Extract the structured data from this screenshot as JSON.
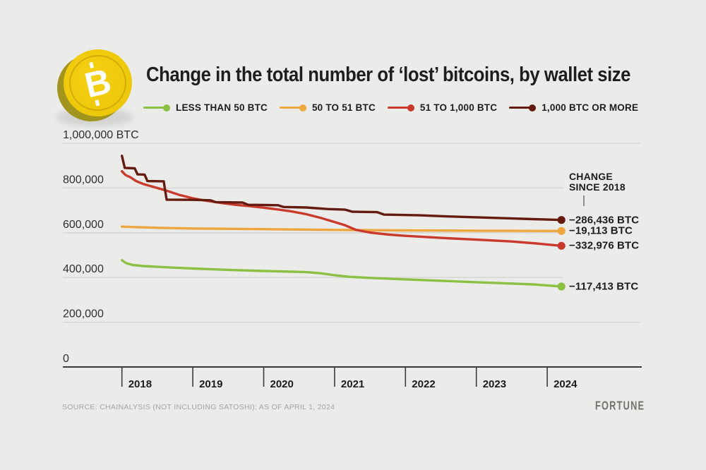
{
  "title": "Change in the total number of ‘lost’ bitcoins, by wallet size",
  "coin": {
    "symbol": "B",
    "name": "bitcoin"
  },
  "annotation": {
    "header_line1": "CHANGE",
    "header_line2": "SINCE 2018"
  },
  "source": "SOURCE: CHAINALYSIS (NOT INCLUDING SATOSHI); AS OF APRIL 1, 2024",
  "brand": "FORTUNE",
  "colors": {
    "background": "#ebece9",
    "grid": "#d3d3d0",
    "axis": "#3b3b39",
    "text_dark": "#1d1d1d",
    "text_muted": "#a3a3a0",
    "green": "#8cc043",
    "orange": "#eda73e",
    "red": "#c93a2c",
    "maroon": "#641b10",
    "coin_gold": "#eec80a",
    "coin_edge": "#a2951d"
  },
  "chart_data": {
    "type": "line",
    "title": "Change in the total number of ‘lost’ bitcoins, by wallet size",
    "unit": "BTC",
    "grid": true,
    "legend_position": "top",
    "x_axis": {
      "tick_labels": [
        "2018",
        "2019",
        "2020",
        "2021",
        "2022",
        "2023",
        "2024"
      ],
      "range_years": [
        2018,
        2024.25
      ]
    },
    "y_axis": {
      "range": [
        0,
        1000000
      ],
      "ticks": [
        {
          "label": "1,000,000 BTC",
          "value": 1000000
        },
        {
          "label": "800,000",
          "value": 800000
        },
        {
          "label": "600,000",
          "value": 600000
        },
        {
          "label": "400,000",
          "value": 400000
        },
        {
          "label": "200,000",
          "value": 200000
        },
        {
          "label": "0",
          "value": 0
        }
      ]
    },
    "series": [
      {
        "name": "LESS THAN 50 BTC",
        "color": "#8cc043",
        "change_since_2018": "−117,413 BTC",
        "end_value": 359700,
        "points": [
          [
            2018.0,
            477100
          ],
          [
            2018.06,
            464000
          ],
          [
            2018.15,
            456000
          ],
          [
            2018.3,
            451000
          ],
          [
            2018.6,
            446000
          ],
          [
            2019.0,
            440000
          ],
          [
            2019.5,
            434000
          ],
          [
            2020.0,
            429000
          ],
          [
            2020.4,
            426000
          ],
          [
            2020.6,
            424000
          ],
          [
            2020.8,
            419000
          ],
          [
            2021.0,
            410000
          ],
          [
            2021.2,
            403000
          ],
          [
            2021.5,
            398000
          ],
          [
            2021.8,
            394000
          ],
          [
            2022.2,
            389000
          ],
          [
            2022.6,
            384000
          ],
          [
            2023.0,
            379000
          ],
          [
            2023.4,
            374000
          ],
          [
            2023.8,
            369000
          ],
          [
            2024.05,
            363500
          ],
          [
            2024.2,
            359700
          ]
        ]
      },
      {
        "name": "50 TO 51 BTC",
        "color": "#eda73e",
        "change_since_2018": "−19,113 BTC",
        "end_value": 608000,
        "points": [
          [
            2018.0,
            627100
          ],
          [
            2018.5,
            622000
          ],
          [
            2019.0,
            619000
          ],
          [
            2020.0,
            616000
          ],
          [
            2021.0,
            612500
          ],
          [
            2022.0,
            610500
          ],
          [
            2023.0,
            609300
          ],
          [
            2024.2,
            608000
          ]
        ]
      },
      {
        "name": "51 TO 1,000 BTC",
        "color": "#c93a2c",
        "change_since_2018": "−332,976 BTC",
        "end_value": 541700,
        "points": [
          [
            2018.0,
            874700
          ],
          [
            2018.05,
            858000
          ],
          [
            2018.12,
            848000
          ],
          [
            2018.2,
            831000
          ],
          [
            2018.3,
            818000
          ],
          [
            2018.5,
            800000
          ],
          [
            2018.63,
            788000
          ],
          [
            2018.8,
            770000
          ],
          [
            2019.0,
            754000
          ],
          [
            2019.15,
            745000
          ],
          [
            2019.4,
            733000
          ],
          [
            2019.6,
            725000
          ],
          [
            2019.8,
            719000
          ],
          [
            2020.0,
            712000
          ],
          [
            2020.2,
            704000
          ],
          [
            2020.4,
            695000
          ],
          [
            2020.6,
            683000
          ],
          [
            2020.8,
            667000
          ],
          [
            2021.0,
            648000
          ],
          [
            2021.15,
            633000
          ],
          [
            2021.3,
            613000
          ],
          [
            2021.5,
            601000
          ],
          [
            2021.75,
            592000
          ],
          [
            2022.0,
            586000
          ],
          [
            2022.5,
            577000
          ],
          [
            2023.0,
            569000
          ],
          [
            2023.5,
            561000
          ],
          [
            2023.85,
            552000
          ],
          [
            2024.05,
            546000
          ],
          [
            2024.2,
            541700
          ]
        ]
      },
      {
        "name": "1,000 BTC OR MORE",
        "color": "#641b10",
        "change_since_2018": "−286,436 BTC",
        "end_value": 657200,
        "points": [
          [
            2018.0,
            944000
          ],
          [
            2018.04,
            890000
          ],
          [
            2018.18,
            888000
          ],
          [
            2018.22,
            861000
          ],
          [
            2018.32,
            860000
          ],
          [
            2018.36,
            831000
          ],
          [
            2018.59,
            830000
          ],
          [
            2018.63,
            748000
          ],
          [
            2019.0,
            747000
          ],
          [
            2019.25,
            745000
          ],
          [
            2019.32,
            737000
          ],
          [
            2019.7,
            735000
          ],
          [
            2019.78,
            725000
          ],
          [
            2020.2,
            723000
          ],
          [
            2020.28,
            715000
          ],
          [
            2020.6,
            713000
          ],
          [
            2020.9,
            706000
          ],
          [
            2021.15,
            703000
          ],
          [
            2021.25,
            694000
          ],
          [
            2021.6,
            692000
          ],
          [
            2021.7,
            681000
          ],
          [
            2022.2,
            678000
          ],
          [
            2022.6,
            673000
          ],
          [
            2023.0,
            669000
          ],
          [
            2023.4,
            665000
          ],
          [
            2023.8,
            661000
          ],
          [
            2024.2,
            657200
          ]
        ]
      }
    ]
  }
}
